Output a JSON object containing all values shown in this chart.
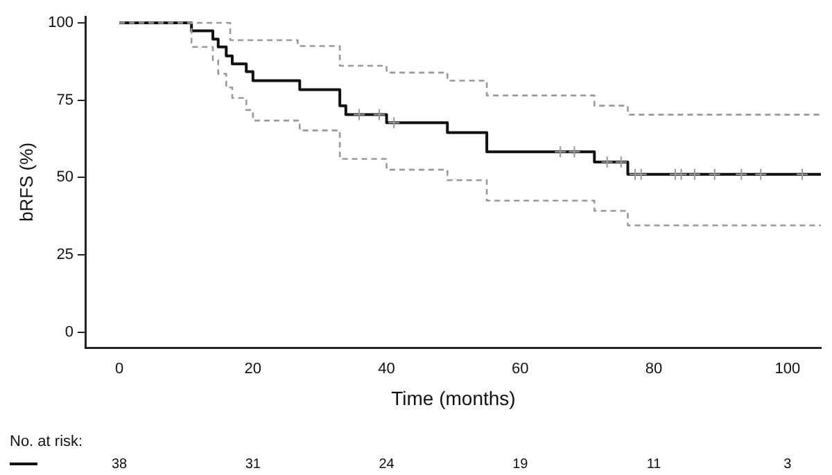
{
  "chart_data": {
    "type": "step",
    "xlabel": "Time (months)",
    "ylabel": "bRFS (%)",
    "xlim": [
      -5,
      105
    ],
    "xticks": [
      0,
      20,
      40,
      60,
      80,
      100
    ],
    "ylim": [
      -5,
      102
    ],
    "yticks": [
      0,
      25,
      50,
      75,
      100
    ],
    "grid": false,
    "legend": false,
    "series": [
      {
        "color": "#111111",
        "line_style": "solid",
        "marker": "none",
        "x": [
          0,
          10.8,
          14.0,
          14.8,
          16.0,
          16.9,
          19.0,
          20.0,
          27.0,
          33.0,
          33.9,
          40.0,
          49.1,
          55.0,
          71.1,
          76.1,
          105
        ],
        "values": [
          100,
          97.4,
          94.7,
          92.2,
          89.3,
          86.7,
          84.2,
          81.3,
          78.4,
          73.2,
          70.3,
          67.7,
          64.5,
          58.3,
          55.0,
          51.0,
          51.0
        ]
      },
      {
        "color": "#999999",
        "line_style": "dashed",
        "marker": "none",
        "x": [
          0,
          16.6,
          26.7,
          33.0,
          40.0,
          49.1,
          55.0,
          71.1,
          76.1,
          105
        ],
        "values": [
          100,
          94.4,
          92.5,
          86.1,
          83.9,
          81.3,
          76.5,
          73.2,
          70.3,
          70.3
        ]
      },
      {
        "color": "#999999",
        "line_style": "dashed",
        "marker": "none",
        "x": [
          0,
          10.8,
          14.0,
          14.8,
          16.0,
          16.9,
          19.0,
          20.0,
          27.0,
          33.0,
          40.0,
          49.1,
          55.0,
          71.1,
          76.1,
          105
        ],
        "values": [
          100,
          92.2,
          87.9,
          83.5,
          79.1,
          75.7,
          71.8,
          68.4,
          65.2,
          56.0,
          52.5,
          49.1,
          42.5,
          39.2,
          34.5,
          34.5
        ]
      },
      {
        "type": "scatter",
        "color": "#999999",
        "marker": "cross",
        "x": [
          35.9,
          38.9,
          41.1,
          66.0,
          68.1,
          73.0,
          75.1,
          77.2,
          78.1,
          83.2,
          84.1,
          86.1,
          89.1,
          93.1,
          96.0,
          102.2
        ],
        "values": [
          70.3,
          70.3,
          67.7,
          58.3,
          58.3,
          55.0,
          55.0,
          51.0,
          51.0,
          51.0,
          51.0,
          51.0,
          51.0,
          51.0,
          51.0,
          51.0
        ]
      }
    ],
    "annotations": [
      "No. at risk:",
      "38",
      "31",
      "24",
      "19",
      "11",
      "3"
    ]
  }
}
